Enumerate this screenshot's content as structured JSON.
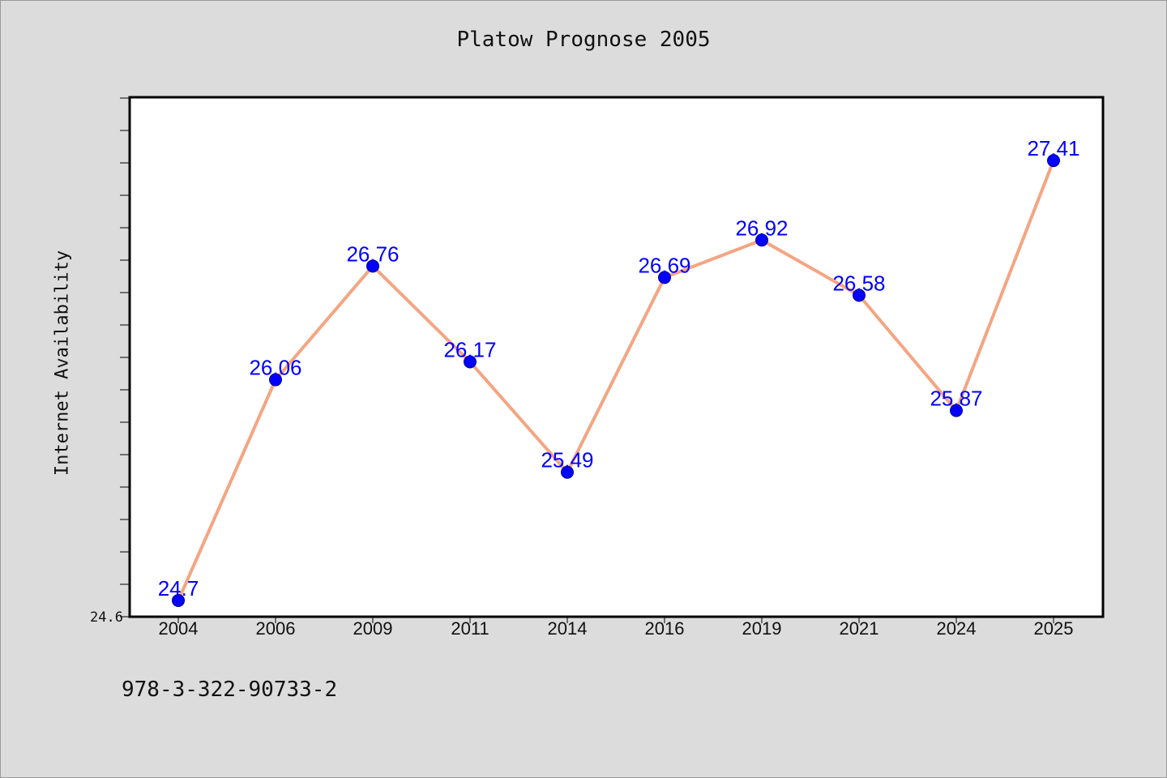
{
  "chart_data": {
    "type": "line",
    "title": "Platow Prognose 2005",
    "ylabel": "Internet Availability",
    "xlabel": "",
    "categories": [
      "2004",
      "2006",
      "2009",
      "2011",
      "2014",
      "2016",
      "2019",
      "2021",
      "2024",
      "2025"
    ],
    "series": [
      {
        "values": [
          24.7,
          26.06,
          26.76,
          26.17,
          25.49,
          26.69,
          26.92,
          26.58,
          25.87,
          27.41
        ],
        "labels": [
          "24.7",
          "26.06",
          "26.76",
          "26.17",
          "25.49",
          "26.69",
          "26.92",
          "26.58",
          "25.87",
          "27.41"
        ]
      }
    ],
    "ylim": [
      24.6,
      27.8
    ],
    "ytick_label": "24.6",
    "grid": false,
    "colors": {
      "line": "#f4a582",
      "marker": "#0000ff",
      "label": "#0000ff"
    }
  },
  "footer": {
    "text": "978-3-322-90733-2"
  }
}
